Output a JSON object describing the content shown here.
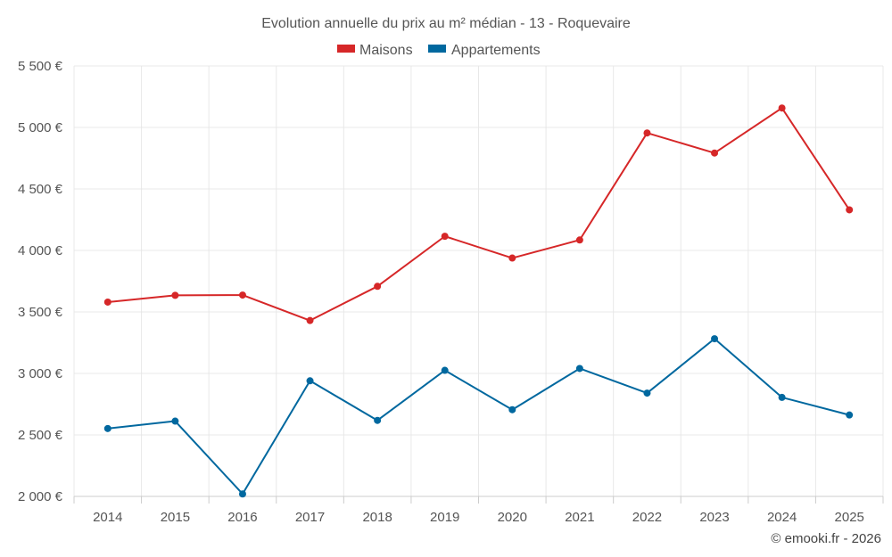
{
  "chart_data": {
    "type": "line",
    "title": "Evolution annuelle du prix au m² médian - 13 - Roquevaire",
    "categories": [
      "2014",
      "2015",
      "2016",
      "2017",
      "2018",
      "2019",
      "2020",
      "2021",
      "2022",
      "2023",
      "2024",
      "2025"
    ],
    "series": [
      {
        "name": "Maisons",
        "color": "#d62728",
        "values": [
          3580,
          3635,
          3637,
          3430,
          3708,
          4115,
          3938,
          4085,
          4955,
          4792,
          5158,
          4330
        ]
      },
      {
        "name": "Appartements",
        "color": "#00689f",
        "values": [
          2552,
          2612,
          2020,
          2940,
          2618,
          3025,
          2705,
          3040,
          2840,
          3282,
          2805,
          2662
        ]
      }
    ],
    "ylim": [
      2000,
      5500
    ],
    "yticks": [
      2000,
      2500,
      3000,
      3500,
      4000,
      4500,
      5000,
      5500
    ],
    "ytick_labels": [
      "2 000 €",
      "2 500 €",
      "3 000 €",
      "3 500 €",
      "4 000 €",
      "4 500 €",
      "5 000 €",
      "5 500 €"
    ],
    "xlabel": "",
    "ylabel": "",
    "grid": true,
    "legend": "top-center"
  },
  "credit": "© emooki.fr - 2026"
}
